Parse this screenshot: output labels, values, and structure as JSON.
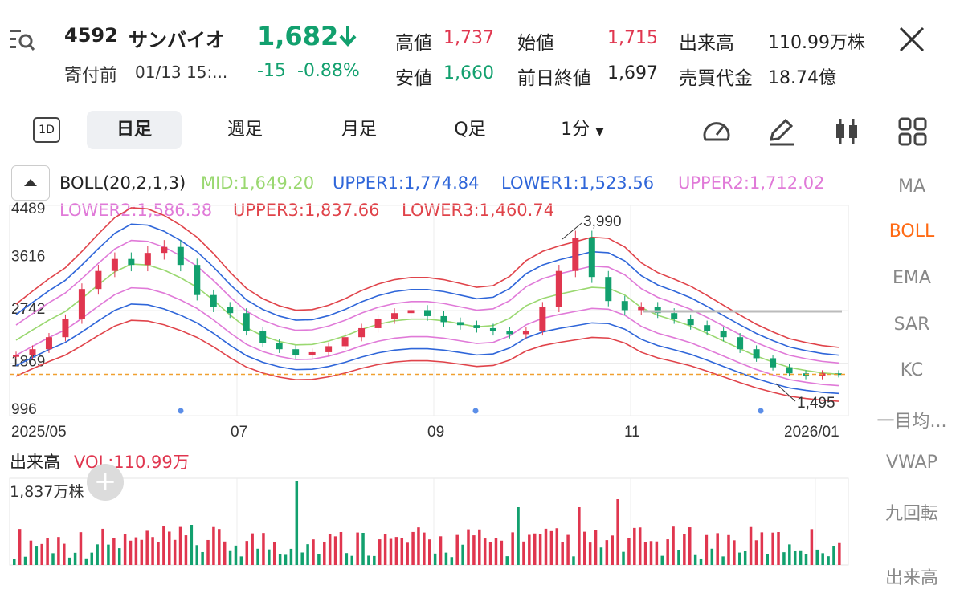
{
  "header": {
    "code": "4592",
    "name": "サンバイオ",
    "price": "1,682",
    "status": "寄付前",
    "datetime": "01/13 15:...",
    "change": "-15",
    "change_pct": "-0.88%",
    "quotes": [
      {
        "label": "高値",
        "value": "1,737",
        "color": "red"
      },
      {
        "label": "安値",
        "value": "1,660",
        "color": "green"
      },
      {
        "label": "始値",
        "value": "1,715",
        "color": "red"
      },
      {
        "label": "前日終値",
        "value": "1,697",
        "color": "black"
      },
      {
        "label": "出来高",
        "value": "110.99万株",
        "color": "black"
      },
      {
        "label": "売買代金",
        "value": "18.74億",
        "color": "black"
      }
    ]
  },
  "tabs": {
    "one_day": "1D",
    "items": [
      "日足",
      "週足",
      "月足",
      "Q足"
    ],
    "active": "日足",
    "interval": "1分"
  },
  "indicator": {
    "name": "BOLL(20,2,1,3)",
    "mid": "MID:1,649.20",
    "upper1": "UPPER1:1,774.84",
    "lower1": "LOWER1:1,523.56",
    "upper2": "UPPER2:1,712.02",
    "lower2": "LOWER2:1,586.38",
    "upper3": "UPPER3:1,837.66",
    "lower3": "LOWER3:1,460.74"
  },
  "side_menu": [
    "MA",
    "BOLL",
    "EMA",
    "SAR",
    "KC",
    "一目均...",
    "VWAP",
    "九回転",
    "出来高"
  ],
  "side_active": "BOLL",
  "volume": {
    "title": "出来高",
    "vol_label": "VOL:110.99万",
    "max_label": "1,837万株"
  },
  "colors": {
    "up": "#e0364f",
    "down": "#12a06e",
    "mid": "#9ad870",
    "band1": "#2f66d9",
    "band2": "#e07ad8",
    "band3": "#e0434a",
    "accent": "#ff6a13"
  },
  "chart_data": {
    "type": "candlestick",
    "y_ticks": [
      "4489",
      "3616",
      "2742",
      "1869",
      "996"
    ],
    "x_ticks": [
      "2025/05",
      "07",
      "09",
      "11",
      "2026/01"
    ],
    "annotations": [
      {
        "label": "3,990"
      },
      {
        "label": "1,495"
      }
    ],
    "current_price_line": 1682,
    "ylim": [
      996,
      4489
    ],
    "series": [
      {
        "name": "close",
        "values": [
          2000,
          2100,
          2300,
          2600,
          3100,
          3400,
          3600,
          3500,
          3700,
          3800,
          3500,
          3000,
          2800,
          2700,
          2400,
          2200,
          2100,
          2000,
          2050,
          2150,
          2300,
          2450,
          2600,
          2700,
          2750,
          2650,
          2550,
          2500,
          2450,
          2400,
          2350,
          2400,
          2800,
          3400,
          3950,
          3300,
          2900,
          2750,
          2800,
          2700,
          2600,
          2500,
          2400,
          2300,
          2100,
          1950,
          1800,
          1700,
          1650,
          1700,
          1682
        ]
      }
    ]
  }
}
